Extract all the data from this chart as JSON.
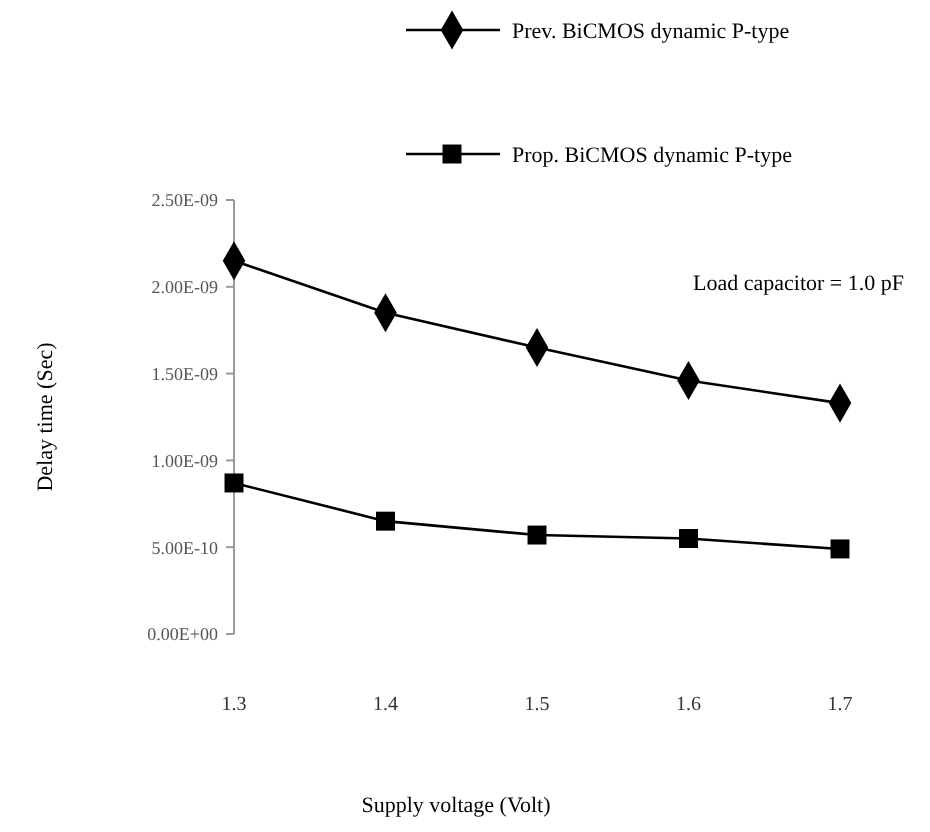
{
  "chart_data": {
    "type": "line",
    "categories": [
      "1.3",
      "1.4",
      "1.5",
      "1.6",
      "1.7"
    ],
    "series": [
      {
        "name": "Prev. BiCMOS dynamic P-type",
        "color": "#000000",
        "marker": "diamond",
        "values": [
          2.15e-09,
          1.85e-09,
          1.65e-09,
          1.46e-09,
          1.33e-09
        ]
      },
      {
        "name": "Prop. BiCMOS dynamic P-type",
        "color": "#000000",
        "marker": "square",
        "values": [
          8.7e-10,
          6.5e-10,
          5.7e-10,
          5.5e-10,
          4.9e-10
        ]
      }
    ],
    "xlabel": "Supply voltage (Volt)",
    "ylabel": "Delay time (Sec)",
    "ylim": [
      0,
      2.5e-09
    ],
    "yticks": [
      {
        "value": 0,
        "label": "0.00E+00"
      },
      {
        "value": 5e-10,
        "label": "5.00E-10"
      },
      {
        "value": 1e-09,
        "label": "1.00E-09"
      },
      {
        "value": 1.5e-09,
        "label": "1.50E-09"
      },
      {
        "value": 2e-09,
        "label": "2.00E-09"
      },
      {
        "value": 2.5e-09,
        "label": "2.50E-09"
      }
    ],
    "annotations": [
      "Load capacitor = 1.0 pF"
    ],
    "legend": "top right",
    "grid": false,
    "line_style": "solid"
  }
}
